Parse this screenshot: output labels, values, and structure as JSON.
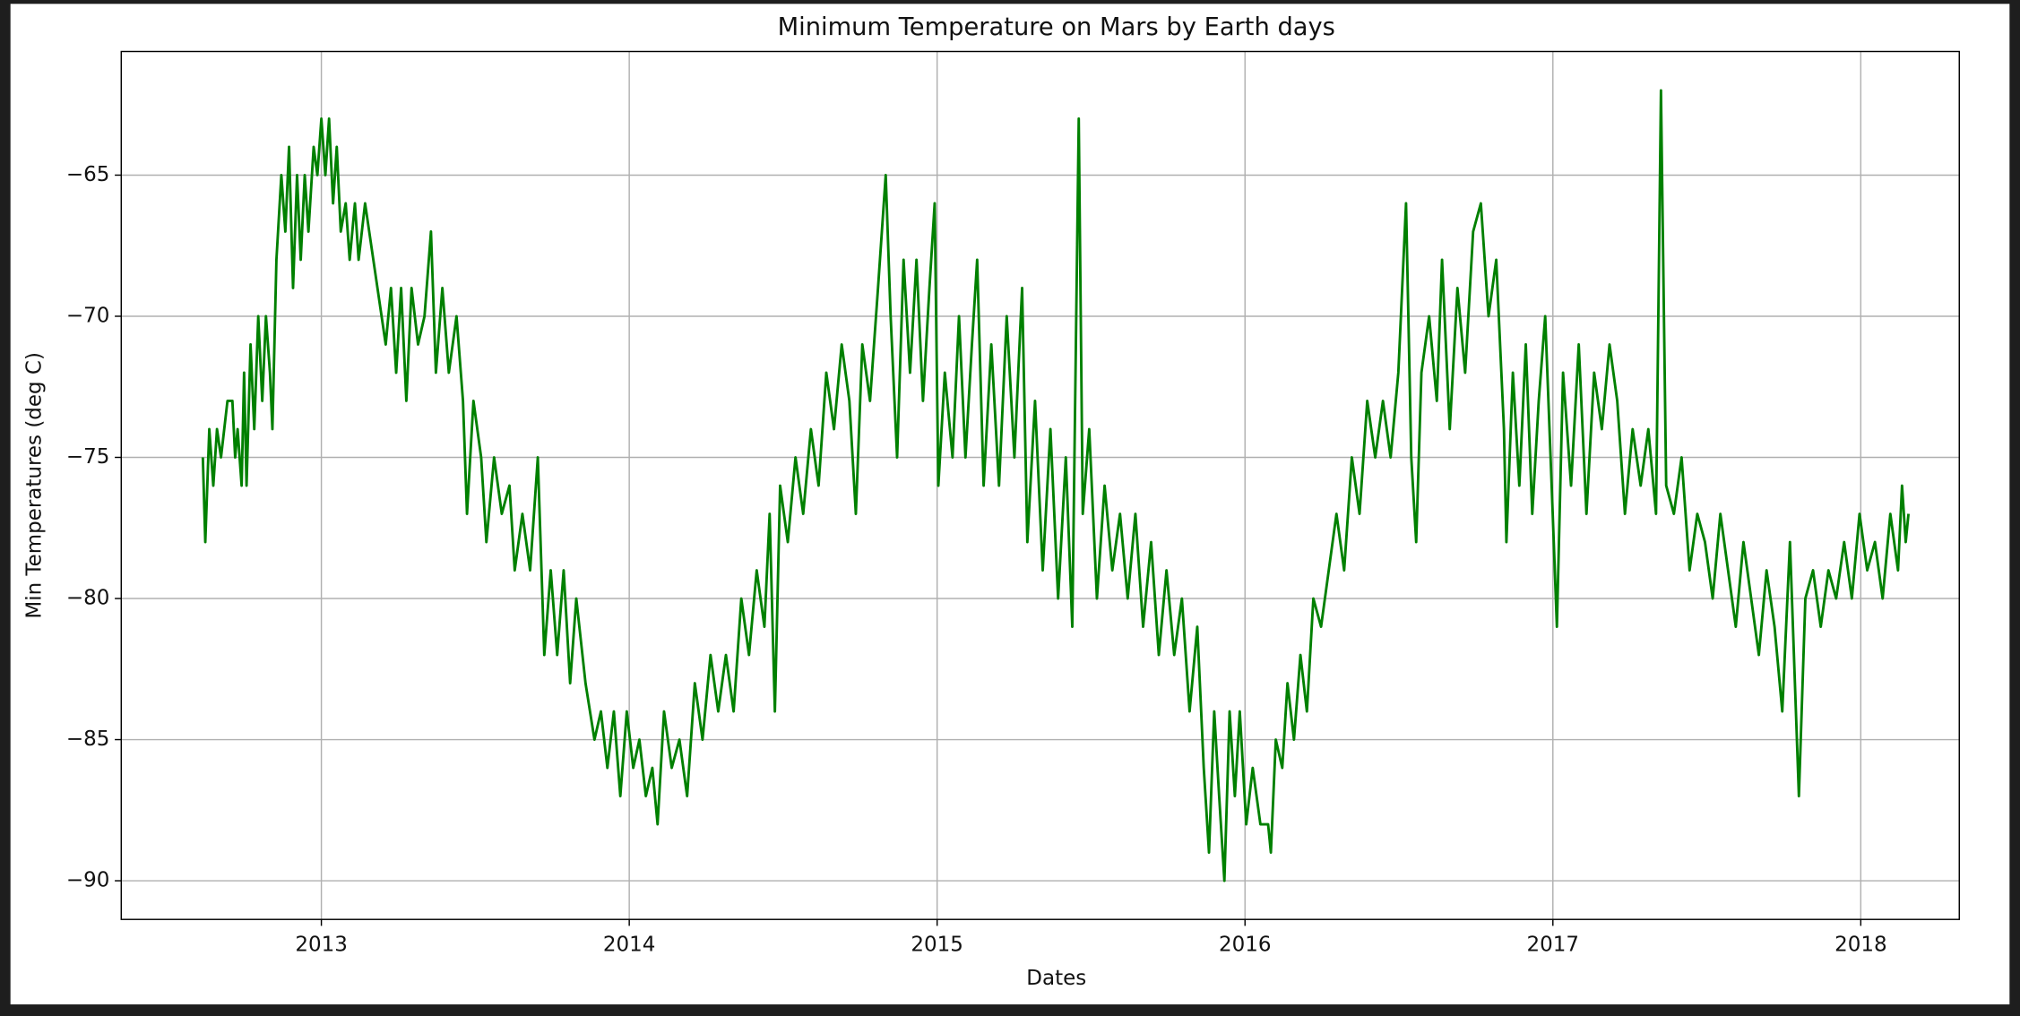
{
  "chart_data": {
    "type": "line",
    "title": "Minimum Temperature on Mars by Earth days",
    "x_label": "Dates",
    "y_label": "Min Temperatures (deg C)",
    "xlim": [
      2012.35,
      2018.32
    ],
    "xticks": [
      2013,
      2014,
      2015,
      2016,
      2017,
      2018
    ],
    "ylim": [
      -91.37,
      -60.62
    ],
    "yticks": [
      {
        "value": -65,
        "label": "−65"
      },
      {
        "value": -70,
        "label": "−70"
      },
      {
        "value": -75,
        "label": "−75"
      },
      {
        "value": -80,
        "label": "−80"
      },
      {
        "value": -85,
        "label": "−85"
      },
      {
        "value": -90,
        "label": "−90"
      }
    ],
    "grid": true,
    "color": "#008000",
    "x": [
      2012.615,
      2012.623,
      2012.636,
      2012.649,
      2012.661,
      2012.674,
      2012.695,
      2012.711,
      2012.72,
      2012.728,
      2012.741,
      2012.749,
      2012.757,
      2012.77,
      2012.782,
      2012.795,
      2012.808,
      2012.82,
      2012.833,
      2012.841,
      2012.854,
      2012.87,
      2012.883,
      2012.895,
      2012.908,
      2012.921,
      2012.933,
      2012.946,
      2012.958,
      2012.975,
      2012.987,
      2013.0,
      2013.013,
      2013.025,
      2013.038,
      2013.05,
      2013.063,
      2013.079,
      2013.092,
      2013.109,
      2013.121,
      2013.142,
      2013.209,
      2013.226,
      2013.243,
      2013.259,
      2013.276,
      2013.293,
      2013.314,
      2013.335,
      2013.356,
      2013.372,
      2013.393,
      2013.414,
      2013.439,
      2013.46,
      2013.473,
      2013.494,
      2013.519,
      2013.536,
      2013.561,
      2013.586,
      2013.611,
      2013.628,
      2013.653,
      2013.678,
      2013.703,
      2013.724,
      2013.745,
      2013.766,
      2013.787,
      2013.808,
      2013.828,
      2013.858,
      2013.887,
      2013.908,
      2013.929,
      2013.95,
      2013.971,
      2013.992,
      2014.013,
      2014.033,
      2014.054,
      2014.075,
      2014.092,
      2014.113,
      2014.138,
      2014.163,
      2014.188,
      2014.213,
      2014.238,
      2014.264,
      2014.289,
      2014.314,
      2014.339,
      2014.364,
      2014.389,
      2014.414,
      2014.439,
      2014.456,
      2014.473,
      2014.49,
      2014.515,
      2014.54,
      2014.565,
      2014.59,
      2014.615,
      2014.64,
      2014.665,
      2014.69,
      2014.715,
      2014.736,
      2014.757,
      2014.782,
      2014.808,
      2014.833,
      2014.849,
      2014.87,
      2014.891,
      2014.912,
      2014.933,
      2014.954,
      2014.975,
      2014.992,
      2015.004,
      2015.025,
      2015.05,
      2015.071,
      2015.092,
      2015.113,
      2015.13,
      2015.151,
      2015.176,
      2015.201,
      2015.226,
      2015.251,
      2015.276,
      2015.293,
      2015.318,
      2015.343,
      2015.368,
      2015.393,
      2015.418,
      2015.439,
      2015.46,
      2015.473,
      2015.494,
      2015.519,
      2015.544,
      2015.569,
      2015.594,
      2015.619,
      2015.644,
      2015.669,
      2015.695,
      2015.72,
      2015.745,
      2015.77,
      2015.795,
      2015.82,
      2015.845,
      2015.866,
      2015.883,
      2015.9,
      2015.916,
      2015.933,
      2015.95,
      2015.967,
      2015.983,
      2016.004,
      2016.025,
      2016.05,
      2016.075,
      2016.084,
      2016.1,
      2016.121,
      2016.138,
      2016.159,
      2016.18,
      2016.201,
      2016.222,
      2016.247,
      2016.272,
      2016.297,
      2016.322,
      2016.347,
      2016.372,
      2016.397,
      2016.423,
      2016.448,
      2016.473,
      2016.498,
      2016.523,
      2016.54,
      2016.556,
      2016.573,
      2016.598,
      2016.623,
      2016.64,
      2016.665,
      2016.69,
      2016.715,
      2016.741,
      2016.766,
      2016.791,
      2016.816,
      2016.841,
      2016.849,
      2016.87,
      2016.891,
      2016.912,
      2016.933,
      2016.954,
      2016.975,
      2016.996,
      2017.013,
      2017.033,
      2017.059,
      2017.084,
      2017.109,
      2017.134,
      2017.159,
      2017.184,
      2017.209,
      2017.234,
      2017.259,
      2017.285,
      2017.31,
      2017.335,
      2017.351,
      2017.368,
      2017.393,
      2017.418,
      2017.444,
      2017.469,
      2017.494,
      2017.519,
      2017.544,
      2017.569,
      2017.594,
      2017.619,
      2017.644,
      2017.669,
      2017.694,
      2017.72,
      2017.745,
      2017.77,
      2017.799,
      2017.82,
      2017.845,
      2017.87,
      2017.895,
      2017.92,
      2017.946,
      2017.971,
      2017.996,
      2018.021,
      2018.046,
      2018.071,
      2018.096,
      2018.121,
      2018.134,
      2018.146,
      2018.155
    ],
    "values": [
      -75,
      -78,
      -74,
      -76,
      -74,
      -75,
      -73,
      -73,
      -75,
      -74,
      -76,
      -72,
      -76,
      -71,
      -74,
      -70,
      -73,
      -70,
      -72,
      -74,
      -68,
      -65,
      -67,
      -64,
      -69,
      -65,
      -68,
      -65,
      -67,
      -64,
      -65,
      -63,
      -65,
      -63,
      -66,
      -64,
      -67,
      -66,
      -68,
      -66,
      -68,
      -66,
      -71,
      -69,
      -72,
      -69,
      -73,
      -69,
      -71,
      -70,
      -67,
      -72,
      -69,
      -72,
      -70,
      -73,
      -77,
      -73,
      -75,
      -78,
      -75,
      -77,
      -76,
      -79,
      -77,
      -79,
      -75,
      -82,
      -79,
      -82,
      -79,
      -83,
      -80,
      -83,
      -85,
      -84,
      -86,
      -84,
      -87,
      -84,
      -86,
      -85,
      -87,
      -86,
      -88,
      -84,
      -86,
      -85,
      -87,
      -83,
      -85,
      -82,
      -84,
      -82,
      -84,
      -80,
      -82,
      -79,
      -81,
      -77,
      -84,
      -76,
      -78,
      -75,
      -77,
      -74,
      -76,
      -72,
      -74,
      -71,
      -73,
      -77,
      -71,
      -73,
      -69,
      -65,
      -70,
      -75,
      -68,
      -72,
      -68,
      -73,
      -69,
      -66,
      -76,
      -72,
      -75,
      -70,
      -75,
      -71,
      -68,
      -76,
      -71,
      -76,
      -70,
      -75,
      -69,
      -78,
      -73,
      -79,
      -74,
      -80,
      -75,
      -81,
      -63,
      -77,
      -74,
      -80,
      -76,
      -79,
      -77,
      -80,
      -77,
      -81,
      -78,
      -82,
      -79,
      -82,
      -80,
      -84,
      -81,
      -86,
      -89,
      -84,
      -87,
      -90,
      -84,
      -87,
      -84,
      -88,
      -86,
      -88,
      -88,
      -89,
      -85,
      -86,
      -83,
      -85,
      -82,
      -84,
      -80,
      -81,
      -79,
      -77,
      -79,
      -75,
      -77,
      -73,
      -75,
      -73,
      -75,
      -72,
      -66,
      -75,
      -78,
      -72,
      -70,
      -73,
      -68,
      -74,
      -69,
      -72,
      -67,
      -66,
      -70,
      -68,
      -74,
      -78,
      -72,
      -76,
      -71,
      -77,
      -73,
      -70,
      -76,
      -81,
      -72,
      -76,
      -71,
      -77,
      -72,
      -74,
      -71,
      -73,
      -77,
      -74,
      -76,
      -74,
      -77,
      -62,
      -76,
      -77,
      -75,
      -79,
      -77,
      -78,
      -80,
      -77,
      -79,
      -81,
      -78,
      -80,
      -82,
      -79,
      -81,
      -84,
      -78,
      -87,
      -80,
      -79,
      -81,
      -79,
      -80,
      -78,
      -80,
      -77,
      -79,
      -78,
      -80,
      -77,
      -79,
      -76,
      -78,
      -77
    ]
  }
}
